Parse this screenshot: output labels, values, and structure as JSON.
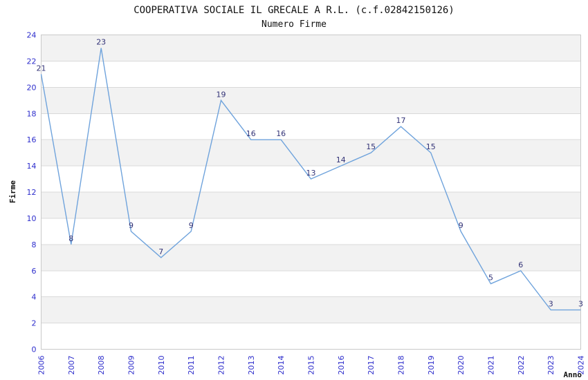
{
  "header": {
    "title": "COOPERATIVA SOCIALE IL GRECALE A R.L. (c.f.02842150126)",
    "subtitle": "Numero Firme"
  },
  "chart_data": {
    "type": "line",
    "title": "COOPERATIVA SOCIALE IL GRECALE A R.L. (c.f.02842150126)",
    "subtitle": "Numero Firme",
    "xlabel": "Anno",
    "ylabel": "Firme",
    "categories": [
      "2006",
      "2007",
      "2008",
      "2009",
      "2010",
      "2011",
      "2012",
      "2013",
      "2014",
      "2015",
      "2016",
      "2017",
      "2018",
      "2019",
      "2020",
      "2021",
      "2022",
      "2023",
      "2024"
    ],
    "values": [
      21,
      8,
      23,
      9,
      7,
      9,
      19,
      16,
      16,
      13,
      14,
      15,
      17,
      15,
      9,
      5,
      6,
      3,
      3
    ],
    "ylim": [
      0,
      24
    ],
    "ytick_step": 2,
    "grid": true,
    "legend": "none",
    "point_labels_visible": true,
    "colors": {
      "line": "#6fa3dc",
      "tick_text": "#2d2dcc",
      "point_label_text": "#333377",
      "band_fill": "#f2f2f2",
      "gridline": "#d9d9d9",
      "plot_border": "#c9c9c9",
      "title_text": "#111111"
    }
  }
}
